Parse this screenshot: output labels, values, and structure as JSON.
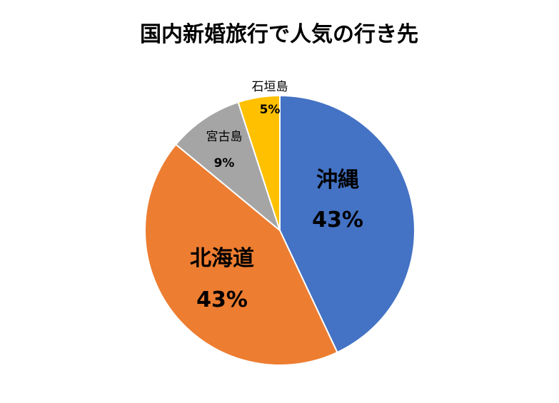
{
  "chart_data": {
    "type": "pie",
    "title": "国内新婚旅行で人気の行き先",
    "slices": [
      {
        "label": "沖縄",
        "value": 43,
        "display": "43%",
        "color": "#4472C4"
      },
      {
        "label": "北海道",
        "value": 43,
        "display": "43%",
        "color": "#ED7D31"
      },
      {
        "label": "宮古島",
        "value": 9,
        "display": "9%",
        "color": "#A5A5A5"
      },
      {
        "label": "石垣島",
        "value": 5,
        "display": "5%",
        "color": "#FFC000"
      }
    ],
    "start_angle": "12 o'clock",
    "direction": "clockwise",
    "legend": "none"
  }
}
